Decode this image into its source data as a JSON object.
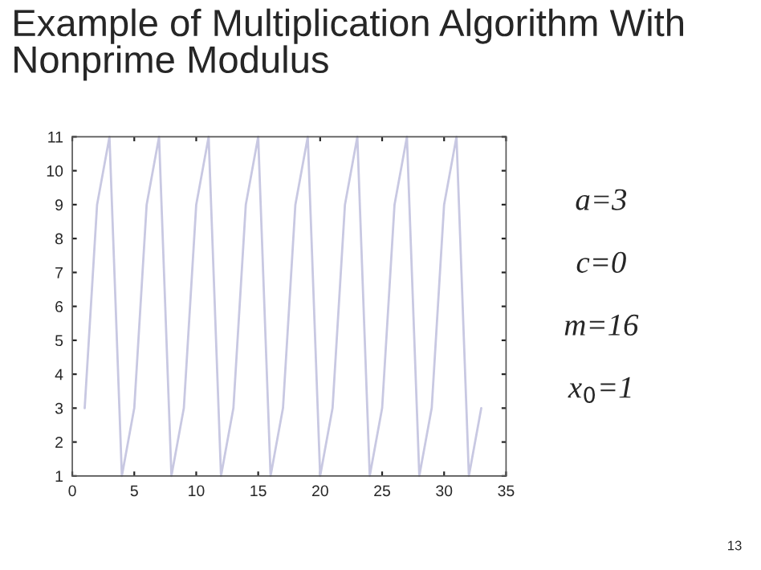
{
  "chart_data": {
    "type": "line",
    "title": "Example of Multiplication Algorithm With Nonprime Modulus",
    "x": [
      1,
      2,
      3,
      4,
      5,
      6,
      7,
      8,
      9,
      10,
      11,
      12,
      13,
      14,
      15,
      16,
      17,
      18,
      19,
      20,
      21,
      22,
      23,
      24,
      25,
      26,
      27,
      28,
      29,
      30,
      31,
      32,
      33
    ],
    "series": [
      {
        "color": "#c8c8e2",
        "values": [
          3,
          9,
          11,
          1,
          3,
          9,
          11,
          1,
          3,
          9,
          11,
          1,
          3,
          9,
          11,
          1,
          3,
          9,
          11,
          1,
          3,
          9,
          11,
          1,
          3,
          9,
          11,
          1,
          3,
          9,
          11,
          1,
          3
        ]
      }
    ],
    "xlim": [
      0,
      35
    ],
    "xticks": [
      0,
      5,
      10,
      15,
      20,
      25,
      30,
      35
    ],
    "ylim": [
      1,
      11
    ],
    "yticks": [
      1,
      2,
      3,
      4,
      5,
      6,
      7,
      8,
      9,
      10,
      11
    ],
    "grid": false,
    "legend": false,
    "annotations": [
      "a=3",
      "c=0",
      "m=16",
      "x$_{0}$=1",
      "13"
    ]
  }
}
